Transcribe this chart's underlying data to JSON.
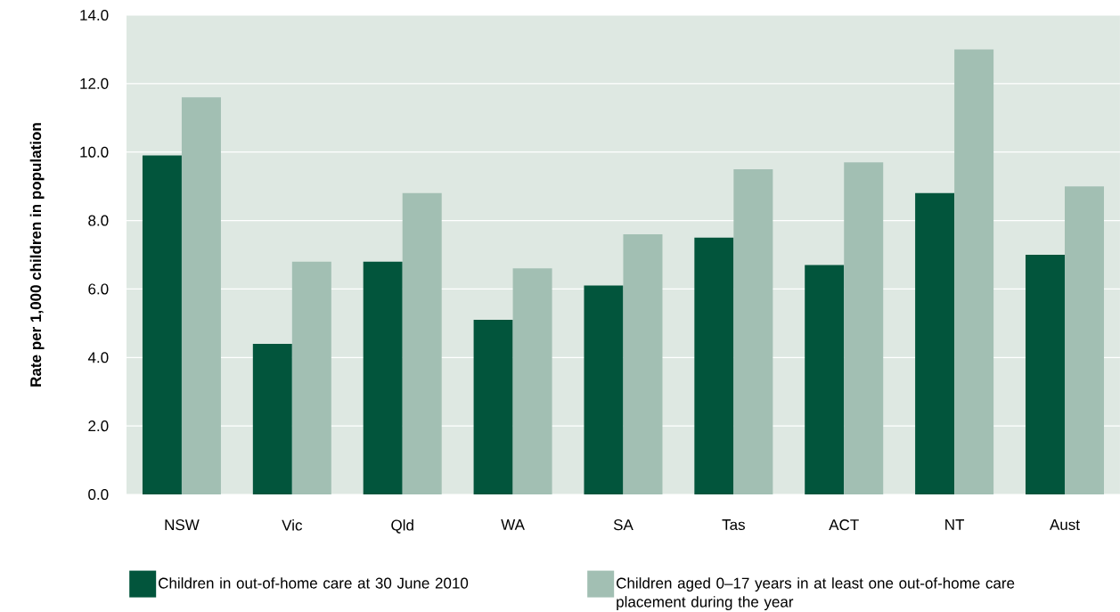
{
  "chart_data": {
    "type": "bar",
    "ylabel": "Rate per 1,000 children in population",
    "categories": [
      "NSW",
      "Vic",
      "Qld",
      "WA",
      "SA",
      "Tas",
      "ACT",
      "NT",
      "Aust"
    ],
    "series": [
      {
        "name": "Children in out-of-home care at 30 June 2010",
        "color": "#02553c",
        "values": [
          9.9,
          4.4,
          6.8,
          5.1,
          6.1,
          7.5,
          6.7,
          8.8,
          7.0
        ]
      },
      {
        "name": "Children aged 0–17 years in at least one out-of-home care placement during the year",
        "color": "#a2bfb3",
        "values": [
          11.6,
          6.8,
          8.8,
          6.6,
          7.6,
          9.5,
          9.7,
          13.0,
          9.0
        ]
      }
    ],
    "ylim": [
      0,
      14
    ],
    "yticks": [
      {
        "value": 0,
        "label": "0.0"
      },
      {
        "value": 2,
        "label": "2.0"
      },
      {
        "value": 4,
        "label": "4.0"
      },
      {
        "value": 6,
        "label": "6.0"
      },
      {
        "value": 8,
        "label": "8.0"
      },
      {
        "value": 10,
        "label": "10.0"
      },
      {
        "value": 12,
        "label": "12.0"
      },
      {
        "value": 14,
        "label": "14.0"
      }
    ],
    "grid": "y",
    "legend": "bottom"
  }
}
